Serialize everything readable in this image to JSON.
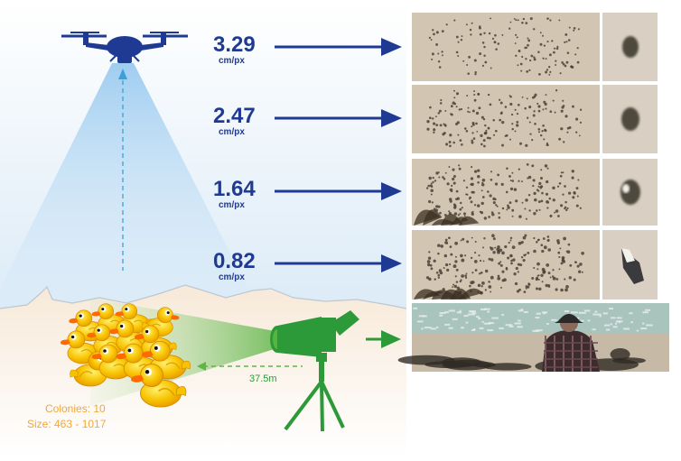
{
  "resolutions": [
    {
      "value": "3.29",
      "unit": "cm/px"
    },
    {
      "value": "2.47",
      "unit": "cm/px"
    },
    {
      "value": "1.64",
      "unit": "cm/px"
    },
    {
      "value": "0.82",
      "unit": "cm/px"
    }
  ],
  "ground_survey": {
    "distance": "37.5m",
    "colonies": "Colonies: 10",
    "size": "Size: 463 - 1017"
  },
  "colors": {
    "drone": "#1f3a93",
    "arrow": "#1f3a93",
    "telescope": "#2d9a3a",
    "ducks": "#f7c200",
    "ground_text": "#f0a73a"
  },
  "icons": [
    "drone-icon",
    "spotting-scope-icon",
    "rubber-duck-icon"
  ]
}
